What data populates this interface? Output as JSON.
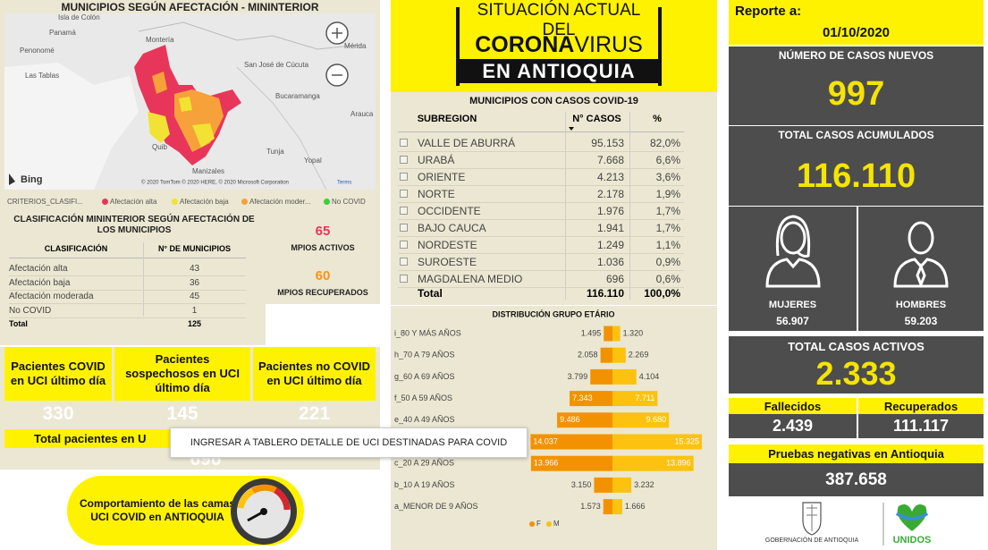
{
  "left": {
    "map": {
      "title": "MUNICIPIOS SEGÚN AFECTACIÓN - MININTERIOR",
      "places": [
        "Isla de Colón",
        "Panamá",
        "Penonomé",
        "Las Tablas",
        "Montería",
        "San José de Cúcuta",
        "Mérida",
        "Bucaramanga",
        "Arauca",
        "Quib",
        "Tunja",
        "Yopal",
        "Manizales"
      ],
      "provider": "Bing",
      "attribution": "© 2020 TomTom © 2020 HERE, © 2020 Microsoft Corporation",
      "terms": "Terms"
    },
    "legend": {
      "title": "CRITERIOS_CLASIFI...",
      "items": [
        {
          "label": "Afectación alta",
          "color": "#e8365b"
        },
        {
          "label": "Afectación baja",
          "color": "#f2e233"
        },
        {
          "label": "Afectación moder...",
          "color": "#f7a13a"
        },
        {
          "label": "No COVID",
          "color": "#3dcc3d"
        }
      ]
    },
    "classification": {
      "title": "CLASIFICACIÓN MININTERIOR SEGÚN AFECTACIÓN DE LOS MUNICIPIOS",
      "headers": [
        "CLASIFICACIÓN",
        "N° DE MUNICIPIOS"
      ],
      "rows": [
        [
          "Afectación alta",
          43
        ],
        [
          "Afectación baja",
          36
        ],
        [
          "Afectación moderada",
          45
        ],
        [
          "No COVID",
          1
        ]
      ],
      "total": [
        "Total",
        125
      ]
    },
    "municipalities": [
      {
        "value": 65,
        "label": "MPIOS ACTIVOS",
        "color": "#e8365b"
      },
      {
        "value": 60,
        "label": "MPIOS RECUPERADOS",
        "color": "#f7931e"
      }
    ],
    "uci": {
      "cards": [
        {
          "title": "Pacientes COVID en UCI último día",
          "value": 330
        },
        {
          "title": "Pacientes sospechosos en UCI último día",
          "value": 145
        },
        {
          "title": "Pacientes no COVID en UCI último día",
          "value": 221
        }
      ],
      "total_title": "Total pacientes en U",
      "total_value": 696
    },
    "tooltip": "INGRESAR A TABLERO DETALLE DE UCI DESTINADAS PARA COVID",
    "button": "Comportamiento de las camas UCI COVID en ANTIOQUIA"
  },
  "header": {
    "line1": "SITUACIÓN ACTUAL DEL",
    "bold": "CORONA",
    "light": "VIRUS",
    "line3": "EN ANTIOQUIA"
  },
  "subregions": {
    "title": "MUNICIPIOS CON CASOS COVID-19",
    "headers": [
      "SUBREGION",
      "N° CASOS",
      "%"
    ],
    "rows": [
      [
        "VALLE DE ABURRÁ",
        "95.153",
        "82,0%"
      ],
      [
        "URABÁ",
        "7.668",
        "6,6%"
      ],
      [
        "ORIENTE",
        "4.213",
        "3,6%"
      ],
      [
        "NORTE",
        "2.178",
        "1,9%"
      ],
      [
        "OCCIDENTE",
        "1.976",
        "1,7%"
      ],
      [
        "BAJO CAUCA",
        "1.941",
        "1,7%"
      ],
      [
        "NORDESTE",
        "1.249",
        "1,1%"
      ],
      [
        "SUROESTE",
        "1.036",
        "0,9%"
      ],
      [
        "MAGDALENA MEDIO",
        "696",
        "0,6%"
      ]
    ],
    "total": [
      "Total",
      "116.110",
      "100,0%"
    ]
  },
  "chart_data": {
    "type": "bar",
    "title": "DISTRIBUCIÓN GRUPO ETÁRIO",
    "categories": [
      "i_80 Y MÁS AÑOS",
      "h_70 A 79 AÑOS",
      "g_60 A 69 AÑOS",
      "f_50 A 59 AÑOS",
      "e_40 A 49 AÑOS",
      null,
      "c_20 A 29 AÑOS",
      "b_10 A 19 AÑOS",
      "a_MENOR DE 9 AÑOS"
    ],
    "series": [
      {
        "name": "F",
        "color": "#f39200",
        "values": [
          1495,
          2058,
          3799,
          7343,
          9486,
          14037,
          13966,
          3150,
          1573
        ],
        "value_labels": [
          "1.495",
          "2.058",
          "3.799",
          "7.343",
          "9.486",
          "14.037",
          "13.966",
          "3.150",
          "1.573"
        ]
      },
      {
        "name": "M",
        "color": "#fcc20f",
        "values": [
          1320,
          2269,
          4104,
          7711,
          9680,
          15325,
          13896,
          3232,
          1666
        ],
        "value_labels": [
          "1.320",
          "2.269",
          "4.104",
          "7.711",
          "9.680",
          "15.325",
          "13.896",
          "3.232",
          "1.666"
        ]
      }
    ]
  },
  "right": {
    "report_label": "Reporte a:",
    "date": "01/10/2020",
    "new_cases": {
      "label": "NÚMERO DE CASOS NUEVOS",
      "value": "997"
    },
    "total_cases": {
      "label": "TOTAL CASOS ACUMULADOS",
      "value": "116.110"
    },
    "women": {
      "label": "MUJERES",
      "value": "56.907"
    },
    "men": {
      "label": "HOMBRES",
      "value": "59.203"
    },
    "active": {
      "label": "TOTAL CASOS ACTIVOS",
      "value": "2.333"
    },
    "deaths": {
      "label": "Fallecidos",
      "value": "2.439"
    },
    "recovered": {
      "label": "Recuperados",
      "value": "111.117"
    },
    "negative_tests": {
      "label": "Pruebas negativas en Antioquia",
      "value": "387.658"
    },
    "logos": [
      "GOBERNACIÓN DE ANTIOQUIA",
      "UNIDOS"
    ]
  }
}
